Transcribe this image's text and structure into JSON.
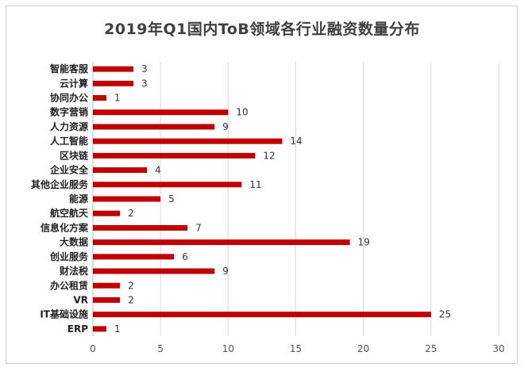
{
  "chart_data": {
    "type": "bar",
    "orientation": "horizontal",
    "title": "2019年Q1国内ToB领域各行业融资数量分布",
    "categories": [
      "智能客服",
      "云计算",
      "协同办公",
      "数字营销",
      "人力资源",
      "人工智能",
      "区块链",
      "企业安全",
      "其他企业服务",
      "能源",
      "航空航天",
      "信息化方案",
      "大数据",
      "创业服务",
      "财法税",
      "办公租赁",
      "VR",
      "IT基础设施",
      "ERP"
    ],
    "values": [
      3,
      3,
      1,
      10,
      9,
      14,
      12,
      4,
      11,
      5,
      2,
      7,
      19,
      6,
      9,
      2,
      2,
      25,
      1
    ],
    "xlim": [
      0,
      30
    ],
    "xticks": [
      0,
      5,
      10,
      15,
      20,
      25,
      30
    ],
    "bar_color": "#c00000",
    "grid": true,
    "xlabel": "",
    "ylabel": ""
  }
}
